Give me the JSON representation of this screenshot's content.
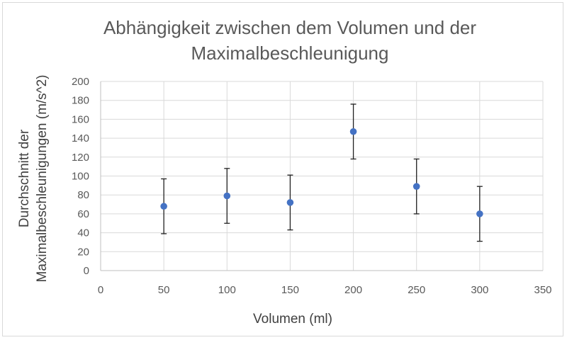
{
  "chart_data": {
    "type": "scatter",
    "title": "Abhängigkeit zwischen dem Volumen und der Maximalbeschleunigung",
    "title_lines": [
      "Abhängigkeit zwischen dem Volumen und der",
      "Maximalbeschleunigung"
    ],
    "xlabel": "Volumen (ml)",
    "ylabel": "Durchschnitt der Maximalbeschleunigungen (m/s^2)",
    "ylabel_lines": [
      "Durchschnitt der",
      "Maximalbeschleunigungen (m/s^2)"
    ],
    "xlim": [
      0,
      350
    ],
    "ylim": [
      0,
      200
    ],
    "xticks": [
      0,
      50,
      100,
      150,
      200,
      250,
      300,
      350
    ],
    "yticks": [
      0,
      20,
      40,
      60,
      80,
      100,
      120,
      140,
      160,
      180,
      200
    ],
    "grid": "vertical-and-horizontal",
    "legend": "none",
    "marker_color": "#4472C4",
    "errorbar_color": "#222222",
    "series": [
      {
        "x": [
          50,
          100,
          150,
          200,
          250,
          300
        ],
        "y": [
          68,
          79,
          72,
          147,
          89,
          60
        ],
        "y_error": [
          29,
          29,
          29,
          29,
          29,
          29
        ]
      }
    ]
  }
}
